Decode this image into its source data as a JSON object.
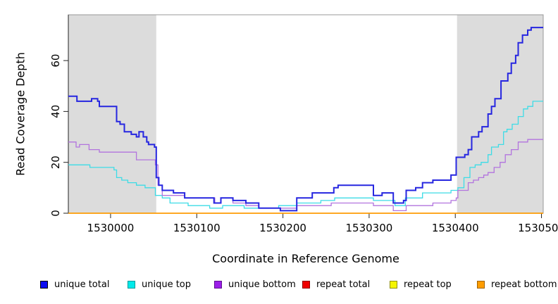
{
  "chart_data": {
    "type": "line",
    "step": true,
    "title": "",
    "xlabel": "Coordinate in Reference Genome",
    "ylabel": "Read Coverage Depth",
    "xlim": [
      1529951,
      1530502
    ],
    "ylim": [
      0,
      78
    ],
    "grid": false,
    "legend_position": "bottom",
    "xticks": [
      1530000,
      1530100,
      1530200,
      1530300,
      1530400,
      1530500
    ],
    "yticks": [
      0,
      20,
      40,
      60
    ],
    "shade_color": "#dcdcdc",
    "border_color": "#999999",
    "axis_color": "#222222",
    "shaded_regions": [
      {
        "from": 1529951,
        "to": 1530053
      },
      {
        "from": 1530402,
        "to": 1530502
      }
    ],
    "series": [
      {
        "name": "unique top",
        "color": "#3cdce6",
        "width": 1.3,
        "points": [
          [
            1529951,
            19
          ],
          [
            1529976,
            18
          ],
          [
            1530004,
            17
          ],
          [
            1530007,
            14
          ],
          [
            1530013,
            13
          ],
          [
            1530020,
            12
          ],
          [
            1530030,
            11
          ],
          [
            1530040,
            10
          ],
          [
            1530052,
            7
          ],
          [
            1530060,
            6
          ],
          [
            1530069,
            4
          ],
          [
            1530090,
            3
          ],
          [
            1530115,
            2
          ],
          [
            1530130,
            3
          ],
          [
            1530155,
            2
          ],
          [
            1530195,
            3
          ],
          [
            1530216,
            4
          ],
          [
            1530244,
            5
          ],
          [
            1530260,
            6
          ],
          [
            1530305,
            5
          ],
          [
            1530330,
            3
          ],
          [
            1530342,
            6
          ],
          [
            1530362,
            8
          ],
          [
            1530395,
            9
          ],
          [
            1530403,
            10
          ],
          [
            1530410,
            14
          ],
          [
            1530417,
            18
          ],
          [
            1530423,
            19
          ],
          [
            1530430,
            20
          ],
          [
            1530438,
            23
          ],
          [
            1530442,
            26
          ],
          [
            1530450,
            27
          ],
          [
            1530456,
            32
          ],
          [
            1530460,
            33
          ],
          [
            1530466,
            35
          ],
          [
            1530473,
            38
          ],
          [
            1530479,
            41
          ],
          [
            1530484,
            42
          ],
          [
            1530490,
            44
          ],
          [
            1530500,
            44
          ]
        ]
      },
      {
        "name": "unique bottom",
        "color": "#b274de",
        "width": 1.3,
        "points": [
          [
            1529951,
            28
          ],
          [
            1529960,
            26
          ],
          [
            1529964,
            27
          ],
          [
            1529975,
            25
          ],
          [
            1529987,
            24
          ],
          [
            1530030,
            21
          ],
          [
            1530052,
            19
          ],
          [
            1530055,
            11
          ],
          [
            1530060,
            7
          ],
          [
            1530086,
            6
          ],
          [
            1530121,
            4
          ],
          [
            1530128,
            6
          ],
          [
            1530142,
            4
          ],
          [
            1530157,
            3
          ],
          [
            1530172,
            2
          ],
          [
            1530216,
            3
          ],
          [
            1530256,
            4
          ],
          [
            1530305,
            3
          ],
          [
            1530328,
            1
          ],
          [
            1530343,
            3
          ],
          [
            1530374,
            4
          ],
          [
            1530395,
            5
          ],
          [
            1530401,
            6
          ],
          [
            1530403,
            9
          ],
          [
            1530415,
            12
          ],
          [
            1530421,
            13
          ],
          [
            1530427,
            14
          ],
          [
            1530433,
            15
          ],
          [
            1530438,
            16
          ],
          [
            1530445,
            18
          ],
          [
            1530452,
            20
          ],
          [
            1530458,
            23
          ],
          [
            1530465,
            25
          ],
          [
            1530473,
            28
          ],
          [
            1530484,
            29
          ],
          [
            1530500,
            29
          ]
        ]
      },
      {
        "name": "repeat total",
        "color": "#ee0000",
        "width": 1.3,
        "points": [
          [
            1529951,
            0
          ],
          [
            1530500,
            0
          ]
        ]
      },
      {
        "name": "repeat top",
        "color": "#f0f000",
        "width": 1.3,
        "points": [
          [
            1529951,
            0
          ],
          [
            1530500,
            0
          ]
        ]
      },
      {
        "name": "repeat bottom",
        "color": "#ff9d00",
        "width": 1.6,
        "points": [
          [
            1529951,
            0
          ],
          [
            1530500,
            0
          ]
        ]
      },
      {
        "name": "unique total",
        "color": "#2626e0",
        "width": 2,
        "points": [
          [
            1529951,
            46
          ],
          [
            1529961,
            44
          ],
          [
            1529978,
            45
          ],
          [
            1529985,
            44
          ],
          [
            1529987,
            42
          ],
          [
            1530007,
            36
          ],
          [
            1530011,
            35
          ],
          [
            1530016,
            32
          ],
          [
            1530024,
            31
          ],
          [
            1530030,
            30
          ],
          [
            1530033,
            32
          ],
          [
            1530038,
            30
          ],
          [
            1530042,
            28
          ],
          [
            1530044,
            27
          ],
          [
            1530051,
            26
          ],
          [
            1530053,
            14
          ],
          [
            1530056,
            11
          ],
          [
            1530060,
            9
          ],
          [
            1530073,
            8
          ],
          [
            1530086,
            6
          ],
          [
            1530120,
            4
          ],
          [
            1530128,
            6
          ],
          [
            1530142,
            5
          ],
          [
            1530157,
            4
          ],
          [
            1530172,
            2
          ],
          [
            1530197,
            1
          ],
          [
            1530216,
            6
          ],
          [
            1530234,
            8
          ],
          [
            1530259,
            10
          ],
          [
            1530264,
            11
          ],
          [
            1530305,
            7
          ],
          [
            1530315,
            8
          ],
          [
            1530328,
            4
          ],
          [
            1530340,
            5
          ],
          [
            1530343,
            9
          ],
          [
            1530354,
            10
          ],
          [
            1530362,
            12
          ],
          [
            1530374,
            13
          ],
          [
            1530395,
            15
          ],
          [
            1530401,
            22
          ],
          [
            1530411,
            23
          ],
          [
            1530415,
            25
          ],
          [
            1530419,
            30
          ],
          [
            1530427,
            32
          ],
          [
            1530431,
            34
          ],
          [
            1530438,
            39
          ],
          [
            1530442,
            42
          ],
          [
            1530446,
            45
          ],
          [
            1530453,
            52
          ],
          [
            1530461,
            55
          ],
          [
            1530465,
            59
          ],
          [
            1530470,
            62
          ],
          [
            1530473,
            67
          ],
          [
            1530478,
            70
          ],
          [
            1530484,
            72
          ],
          [
            1530488,
            73
          ],
          [
            1530500,
            73
          ]
        ]
      }
    ],
    "legend": [
      {
        "label": "unique total",
        "fill": "#0d0df2",
        "border": "#0000990"
      },
      {
        "label": "unique top",
        "fill": "#00eaea",
        "border": "#009a9a"
      },
      {
        "label": "unique bottom",
        "fill": "#9c1ee9",
        "border": "#5e1090"
      },
      {
        "label": "repeat total",
        "fill": "#f00000",
        "border": "#900000"
      },
      {
        "label": "repeat top",
        "fill": "#f5f500",
        "border": "#909000"
      },
      {
        "label": "repeat bottom",
        "fill": "#ff9d00",
        "border": "#a06200"
      }
    ]
  }
}
